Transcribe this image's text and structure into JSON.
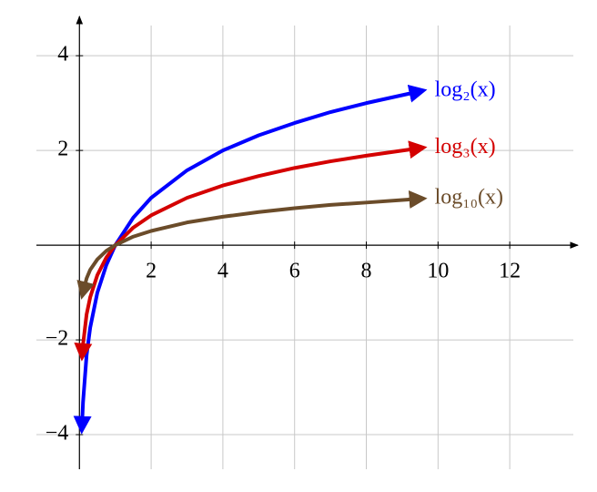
{
  "chart_data": {
    "type": "line",
    "xlim": [
      -1.2,
      13.9
    ],
    "ylim": [
      -4.73,
      4.83
    ],
    "xticks": [
      2,
      4,
      6,
      8,
      10,
      12
    ],
    "yticks": [
      {
        "value": -4,
        "label": "−4"
      },
      {
        "value": -2,
        "label": "−2"
      },
      2,
      4
    ],
    "grid": true,
    "series": [
      {
        "name": "log₂(x)",
        "color": "#0000ff",
        "x": [
          0.07,
          0.1,
          0.2,
          0.3,
          0.5,
          0.75,
          1,
          1.5,
          2,
          3,
          4,
          5,
          6,
          7,
          8,
          9.5
        ],
        "values": [
          -3.84,
          -3.32,
          -2.32,
          -1.74,
          -1,
          -0.42,
          0,
          0.58,
          1,
          1.58,
          2,
          2.32,
          2.58,
          2.81,
          3,
          3.25
        ]
      },
      {
        "name": "log₃(x)",
        "color": "#d40000",
        "x": [
          0.08,
          0.1,
          0.2,
          0.3,
          0.5,
          0.75,
          1,
          1.5,
          2,
          3,
          4,
          5,
          6,
          7,
          8,
          9.5
        ],
        "values": [
          -2.3,
          -2.1,
          -1.46,
          -1.1,
          -0.63,
          -0.26,
          0,
          0.37,
          0.63,
          1,
          1.26,
          1.46,
          1.63,
          1.77,
          1.89,
          2.05
        ]
      },
      {
        "name": "log₁₀(x)",
        "color": "#6b4c2a",
        "x": [
          0.1,
          0.2,
          0.3,
          0.5,
          0.75,
          1,
          1.5,
          2,
          3,
          4,
          5,
          6,
          7,
          8,
          9.5
        ],
        "values": [
          -1,
          -0.7,
          -0.52,
          -0.3,
          -0.12,
          0,
          0.18,
          0.3,
          0.48,
          0.6,
          0.7,
          0.78,
          0.85,
          0.9,
          0.98
        ]
      }
    ]
  }
}
